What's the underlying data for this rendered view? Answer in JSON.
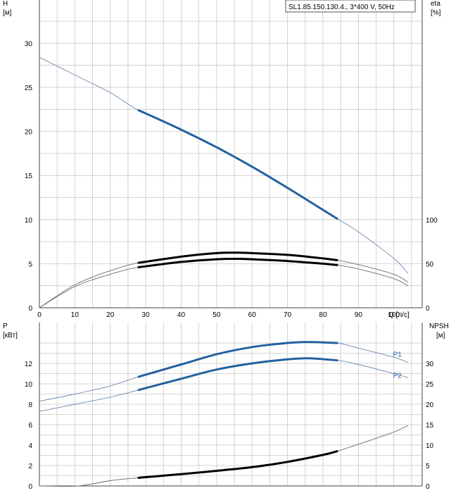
{
  "legend_box": {
    "text": "SL1.85.150.130.4., 3*400 V, 50Hz"
  },
  "chart_data": [
    {
      "type": "line",
      "name": "head-efficiency",
      "xlabel": "Q [л/с]",
      "ylabel_left": {
        "name": "H",
        "unit": "[м]"
      },
      "ylabel_right": {
        "name": "eta",
        "unit": "[%]"
      },
      "xlim": [
        0,
        108
      ],
      "ylim_left": [
        0,
        35
      ],
      "ylim_right": [
        0,
        280
      ],
      "x_ticks": [
        "0",
        "10",
        "20",
        "30",
        "40",
        "50",
        "60",
        "70",
        "80",
        "90",
        "100"
      ],
      "y_ticks_left": [
        "0",
        "5",
        "10",
        "15",
        "20",
        "25",
        "30"
      ],
      "y_ticks_right": [
        "0",
        "50",
        "100"
      ],
      "grid": true,
      "series": [
        {
          "name": "",
          "axis": "left",
          "color": "#2461a0",
          "duty_range": [
            28,
            84
          ],
          "x": [
            0,
            10,
            20,
            28,
            40,
            50,
            60,
            70,
            80,
            84,
            90,
            100,
            104
          ],
          "y": [
            28.4,
            26.4,
            24.4,
            22.4,
            20.2,
            18.2,
            16.0,
            13.6,
            11.1,
            10.1,
            8.6,
            5.6,
            3.9
          ]
        },
        {
          "name": "",
          "axis": "right",
          "color": "#000000",
          "duty_range": [
            28,
            84
          ],
          "x": [
            0,
            10,
            20,
            28,
            40,
            50,
            56,
            60,
            70,
            80,
            84,
            90,
            100,
            104
          ],
          "y": [
            0,
            26,
            42,
            51,
            58,
            62,
            62.5,
            62,
            60,
            56,
            54,
            49,
            38,
            29
          ]
        },
        {
          "name": "",
          "axis": "right",
          "color": "#000000",
          "duty_range": [
            28,
            84
          ],
          "x": [
            0,
            10,
            20,
            28,
            40,
            50,
            56,
            60,
            70,
            80,
            84,
            90,
            100,
            104
          ],
          "y": [
            0,
            24,
            38,
            46,
            52,
            55,
            55.5,
            55,
            53,
            50,
            48.5,
            44,
            33,
            25
          ]
        }
      ]
    },
    {
      "type": "line",
      "name": "power-npsh",
      "ylabel_left": {
        "name": "P",
        "unit": "[кВт]"
      },
      "ylabel_right": {
        "name": "NPSH",
        "unit": "[м]"
      },
      "xlim": [
        0,
        108
      ],
      "ylim_left": [
        0,
        14
      ],
      "ylim_right": [
        0,
        35
      ],
      "y_ticks_left": [
        "0",
        "2",
        "4",
        "6",
        "8",
        "10",
        "12"
      ],
      "y_ticks_right": [
        "0",
        "5",
        "10",
        "15",
        "20",
        "25",
        "30"
      ],
      "grid": true,
      "series": [
        {
          "name": "P1",
          "axis": "left",
          "color": "#2461a0",
          "duty_range": [
            28,
            84
          ],
          "x": [
            0,
            10,
            20,
            28,
            40,
            50,
            60,
            70,
            76,
            84,
            90,
            100,
            104
          ],
          "y": [
            8.3,
            9.0,
            9.8,
            10.7,
            11.9,
            12.9,
            13.6,
            14.0,
            14.1,
            14.0,
            13.5,
            12.6,
            12.1
          ]
        },
        {
          "name": "P2",
          "axis": "left",
          "color": "#2461a0",
          "duty_range": [
            28,
            84
          ],
          "x": [
            0,
            10,
            20,
            28,
            40,
            50,
            60,
            70,
            76,
            84,
            90,
            100,
            104
          ],
          "y": [
            7.3,
            8.0,
            8.7,
            9.4,
            10.5,
            11.4,
            12.0,
            12.4,
            12.5,
            12.3,
            11.9,
            11.0,
            10.6
          ]
        },
        {
          "name": "",
          "axis": "right",
          "color": "#000000",
          "duty_range": [
            28,
            84
          ],
          "x": [
            0,
            11,
            20,
            28,
            40,
            50,
            60,
            70,
            80,
            84,
            90,
            100,
            104
          ],
          "y": [
            0,
            0,
            1.3,
            2.0,
            2.9,
            3.7,
            4.6,
            5.9,
            7.6,
            8.5,
            10.2,
            13.2,
            14.8
          ]
        }
      ]
    }
  ]
}
